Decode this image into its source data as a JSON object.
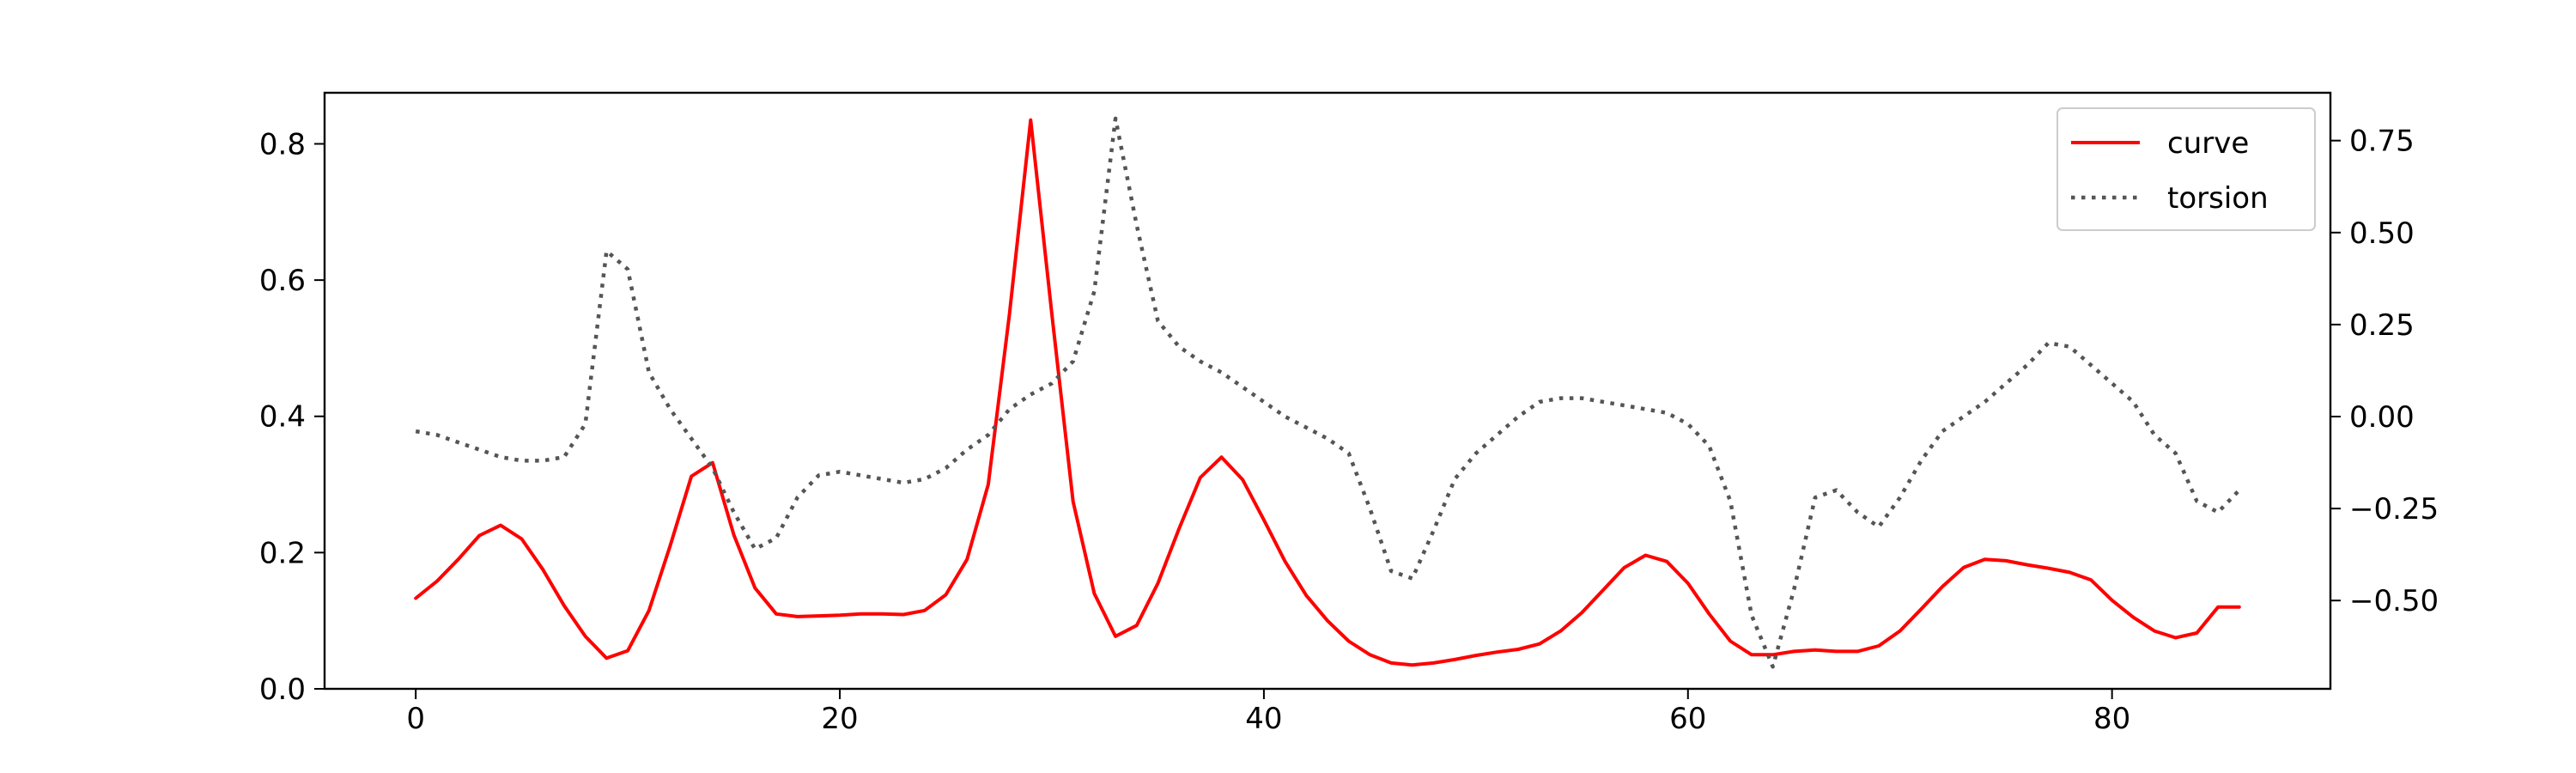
{
  "chart_data": {
    "type": "line",
    "title": "",
    "xlabel": "",
    "ylabel": "",
    "y2label": "",
    "xlim": [
      -4.3,
      90.3
    ],
    "ylim": [
      0,
      0.875
    ],
    "y2lim": [
      -0.74,
      0.88
    ],
    "xticks": [
      0,
      20,
      40,
      60,
      80
    ],
    "yticks": [
      0.0,
      0.2,
      0.4,
      0.6,
      0.8
    ],
    "y2ticks": [
      -0.5,
      -0.25,
      0.0,
      0.25,
      0.5,
      0.75
    ],
    "xtick_labels": [
      "0",
      "20",
      "40",
      "60",
      "80"
    ],
    "ytick_labels": [
      "0.0",
      "0.2",
      "0.4",
      "0.6",
      "0.8"
    ],
    "y2tick_labels": [
      "−0.50",
      "−0.25",
      "0.00",
      "0.25",
      "0.50",
      "0.75"
    ],
    "grid": false,
    "legend": "top-right",
    "x": [
      0,
      1,
      2,
      3,
      4,
      5,
      6,
      7,
      8,
      9,
      10,
      11,
      12,
      13,
      14,
      15,
      16,
      17,
      18,
      19,
      20,
      21,
      22,
      23,
      24,
      25,
      26,
      27,
      28,
      29,
      30,
      31,
      32,
      33,
      34,
      35,
      36,
      37,
      38,
      39,
      40,
      41,
      42,
      43,
      44,
      45,
      46,
      47,
      48,
      49,
      50,
      51,
      52,
      53,
      54,
      55,
      56,
      57,
      58,
      59,
      60,
      61,
      62,
      63,
      64,
      65,
      66,
      67,
      68,
      69,
      70,
      71,
      72,
      73,
      74,
      75,
      76,
      77,
      78,
      79,
      80,
      81,
      82,
      83,
      84,
      85,
      86
    ],
    "series": [
      {
        "name": "curve",
        "axis": "left",
        "color": "#ff0000",
        "style": "solid",
        "values": [
          0.133,
          0.158,
          0.19,
          0.225,
          0.24,
          0.22,
          0.175,
          0.122,
          0.077,
          0.045,
          0.056,
          0.115,
          0.21,
          0.312,
          0.332,
          0.226,
          0.148,
          0.11,
          0.106,
          0.107,
          0.108,
          0.11,
          0.11,
          0.109,
          0.115,
          0.138,
          0.19,
          0.3,
          0.55,
          0.835,
          0.55,
          0.275,
          0.14,
          0.077,
          0.093,
          0.155,
          0.235,
          0.31,
          0.34,
          0.307,
          0.248,
          0.187,
          0.137,
          0.1,
          0.07,
          0.05,
          0.038,
          0.035,
          0.038,
          0.043,
          0.049,
          0.054,
          0.058,
          0.066,
          0.085,
          0.112,
          0.145,
          0.178,
          0.196,
          0.187,
          0.155,
          0.11,
          0.07,
          0.05,
          0.05,
          0.055,
          0.057,
          0.055,
          0.055,
          0.063,
          0.085,
          0.117,
          0.15,
          0.178,
          0.19,
          0.188,
          0.182,
          0.177,
          0.171,
          0.16,
          0.13,
          0.105,
          0.085,
          0.075,
          0.082,
          0.12,
          0.12
        ]
      },
      {
        "name": "torsion",
        "axis": "right",
        "color": "#555555",
        "style": "dotted",
        "values": [
          -0.04,
          -0.05,
          -0.07,
          -0.09,
          -0.11,
          -0.12,
          -0.12,
          -0.11,
          -0.02,
          0.45,
          0.4,
          0.12,
          0.02,
          -0.06,
          -0.14,
          -0.26,
          -0.36,
          -0.33,
          -0.22,
          -0.16,
          -0.15,
          -0.16,
          -0.17,
          -0.18,
          -0.17,
          -0.14,
          -0.09,
          -0.05,
          0.02,
          0.06,
          0.09,
          0.15,
          0.34,
          0.81,
          0.52,
          0.26,
          0.19,
          0.15,
          0.12,
          0.08,
          0.04,
          0.0,
          -0.03,
          -0.06,
          -0.1,
          -0.25,
          -0.42,
          -0.44,
          -0.31,
          -0.17,
          -0.1,
          -0.05,
          0.0,
          0.04,
          0.05,
          0.05,
          0.04,
          0.03,
          0.02,
          0.01,
          -0.02,
          -0.08,
          -0.23,
          -0.54,
          -0.68,
          -0.47,
          -0.22,
          -0.2,
          -0.26,
          -0.3,
          -0.22,
          -0.12,
          -0.04,
          0.0,
          0.04,
          0.09,
          0.14,
          0.2,
          0.19,
          0.14,
          0.09,
          0.04,
          -0.05,
          -0.1,
          -0.23,
          -0.26,
          -0.2
        ]
      }
    ]
  }
}
